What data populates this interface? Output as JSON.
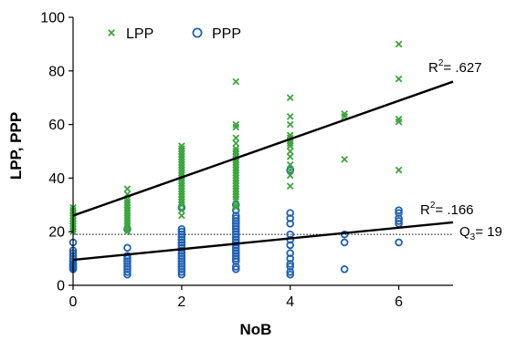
{
  "chart_data": {
    "type": "scatter",
    "xlabel": "NoB",
    "ylabel": "LPP, PPP",
    "xlim": [
      0,
      7
    ],
    "ylim": [
      0,
      100
    ],
    "xticks": [
      0,
      2,
      4,
      6
    ],
    "yticks": [
      0,
      20,
      40,
      60,
      80,
      100
    ],
    "grid": false,
    "legend_position": "top-left",
    "series": [
      {
        "name": "LPP",
        "marker": "x",
        "color": "#3aa53a",
        "points": [
          [
            0,
            29
          ],
          [
            0,
            28
          ],
          [
            0,
            27
          ],
          [
            0,
            26
          ],
          [
            0,
            25
          ],
          [
            0,
            24
          ],
          [
            0,
            23
          ],
          [
            0,
            22
          ],
          [
            0,
            21
          ],
          [
            0,
            20
          ],
          [
            1,
            36
          ],
          [
            1,
            34
          ],
          [
            1,
            32
          ],
          [
            1,
            31
          ],
          [
            1,
            30
          ],
          [
            1,
            29
          ],
          [
            1,
            28
          ],
          [
            1,
            27
          ],
          [
            1,
            26
          ],
          [
            1,
            25
          ],
          [
            1,
            24
          ],
          [
            1,
            23
          ],
          [
            1,
            22
          ],
          [
            1,
            21
          ],
          [
            1,
            20
          ],
          [
            2,
            52
          ],
          [
            2,
            51
          ],
          [
            2,
            50
          ],
          [
            2,
            49
          ],
          [
            2,
            48
          ],
          [
            2,
            47
          ],
          [
            2,
            46
          ],
          [
            2,
            45
          ],
          [
            2,
            44
          ],
          [
            2,
            43
          ],
          [
            2,
            42
          ],
          [
            2,
            41
          ],
          [
            2,
            40
          ],
          [
            2,
            39
          ],
          [
            2,
            38
          ],
          [
            2,
            37
          ],
          [
            2,
            36
          ],
          [
            2,
            35
          ],
          [
            2,
            34
          ],
          [
            2,
            33
          ],
          [
            2,
            32
          ],
          [
            2,
            31
          ],
          [
            2,
            30
          ],
          [
            2,
            28
          ],
          [
            2,
            26
          ],
          [
            3,
            76
          ],
          [
            3,
            60
          ],
          [
            3,
            59
          ],
          [
            3,
            55
          ],
          [
            3,
            53
          ],
          [
            3,
            51
          ],
          [
            3,
            50
          ],
          [
            3,
            49
          ],
          [
            3,
            48
          ],
          [
            3,
            47
          ],
          [
            3,
            46
          ],
          [
            3,
            45
          ],
          [
            3,
            44
          ],
          [
            3,
            43
          ],
          [
            3,
            42
          ],
          [
            3,
            41
          ],
          [
            3,
            40
          ],
          [
            3,
            39
          ],
          [
            3,
            38
          ],
          [
            3,
            37
          ],
          [
            3,
            36
          ],
          [
            3,
            35
          ],
          [
            3,
            34
          ],
          [
            3,
            33
          ],
          [
            3,
            32
          ],
          [
            3,
            30
          ],
          [
            3,
            29
          ],
          [
            4,
            70
          ],
          [
            4,
            63
          ],
          [
            4,
            60
          ],
          [
            4,
            56
          ],
          [
            4,
            55
          ],
          [
            4,
            54
          ],
          [
            4,
            53
          ],
          [
            4,
            52
          ],
          [
            4,
            50
          ],
          [
            4,
            48
          ],
          [
            4,
            45
          ],
          [
            4,
            43
          ],
          [
            4,
            41
          ],
          [
            4,
            37
          ],
          [
            5,
            64
          ],
          [
            5,
            63
          ],
          [
            5,
            47
          ],
          [
            6,
            90
          ],
          [
            6,
            77
          ],
          [
            6,
            62
          ],
          [
            6,
            61
          ],
          [
            6,
            43
          ]
        ]
      },
      {
        "name": "PPP",
        "marker": "o",
        "color": "#1f5fb5",
        "points": [
          [
            0,
            16
          ],
          [
            0,
            13
          ],
          [
            0,
            12
          ],
          [
            0,
            11
          ],
          [
            0,
            10
          ],
          [
            0,
            9
          ],
          [
            0,
            8
          ],
          [
            0,
            7.5
          ],
          [
            0,
            7
          ],
          [
            0,
            6.5
          ],
          [
            0,
            6
          ],
          [
            1,
            21
          ],
          [
            1,
            14
          ],
          [
            1,
            11
          ],
          [
            1,
            10
          ],
          [
            1,
            9
          ],
          [
            1,
            8
          ],
          [
            1,
            7
          ],
          [
            1,
            6
          ],
          [
            1,
            5
          ],
          [
            1,
            4
          ],
          [
            2,
            29
          ],
          [
            2,
            21
          ],
          [
            2,
            20
          ],
          [
            2,
            19
          ],
          [
            2,
            18
          ],
          [
            2,
            17
          ],
          [
            2,
            16
          ],
          [
            2,
            15
          ],
          [
            2,
            14
          ],
          [
            2,
            13
          ],
          [
            2,
            12
          ],
          [
            2,
            11
          ],
          [
            2,
            10
          ],
          [
            2,
            9
          ],
          [
            2,
            8
          ],
          [
            2,
            7
          ],
          [
            2,
            6
          ],
          [
            2,
            5
          ],
          [
            2,
            4
          ],
          [
            3,
            30
          ],
          [
            3,
            28
          ],
          [
            3,
            26
          ],
          [
            3,
            25
          ],
          [
            3,
            24
          ],
          [
            3,
            23
          ],
          [
            3,
            22
          ],
          [
            3,
            21
          ],
          [
            3,
            20
          ],
          [
            3,
            19
          ],
          [
            3,
            18
          ],
          [
            3,
            17
          ],
          [
            3,
            16
          ],
          [
            3,
            15
          ],
          [
            3,
            14
          ],
          [
            3,
            13
          ],
          [
            3,
            12
          ],
          [
            3,
            11
          ],
          [
            3,
            10
          ],
          [
            3,
            9
          ],
          [
            3,
            7
          ],
          [
            3,
            6
          ],
          [
            4,
            43
          ],
          [
            4,
            27
          ],
          [
            4,
            25
          ],
          [
            4,
            23
          ],
          [
            4,
            19
          ],
          [
            4,
            17
          ],
          [
            4,
            15
          ],
          [
            4,
            12
          ],
          [
            4,
            10
          ],
          [
            4,
            8
          ],
          [
            4,
            7
          ],
          [
            4,
            5
          ],
          [
            4,
            4
          ],
          [
            5,
            19
          ],
          [
            5,
            16
          ],
          [
            5,
            6
          ],
          [
            6,
            28
          ],
          [
            6,
            27
          ],
          [
            6,
            25
          ],
          [
            6,
            24
          ],
          [
            6,
            23
          ],
          [
            6,
            16
          ]
        ]
      }
    ],
    "trendlines": [
      {
        "series": "LPP",
        "x": [
          0,
          7
        ],
        "y": [
          26,
          76
        ],
        "label": "R",
        "sup": "2",
        "value": "= .627"
      },
      {
        "series": "PPP",
        "x": [
          0,
          7
        ],
        "y": [
          9.5,
          23.5
        ],
        "label": "R",
        "sup": "2",
        "value": "= .166"
      }
    ],
    "reference_line": {
      "y": 19,
      "label": "Q",
      "sub": "3",
      "value": "= 19",
      "style": "dotted"
    }
  }
}
